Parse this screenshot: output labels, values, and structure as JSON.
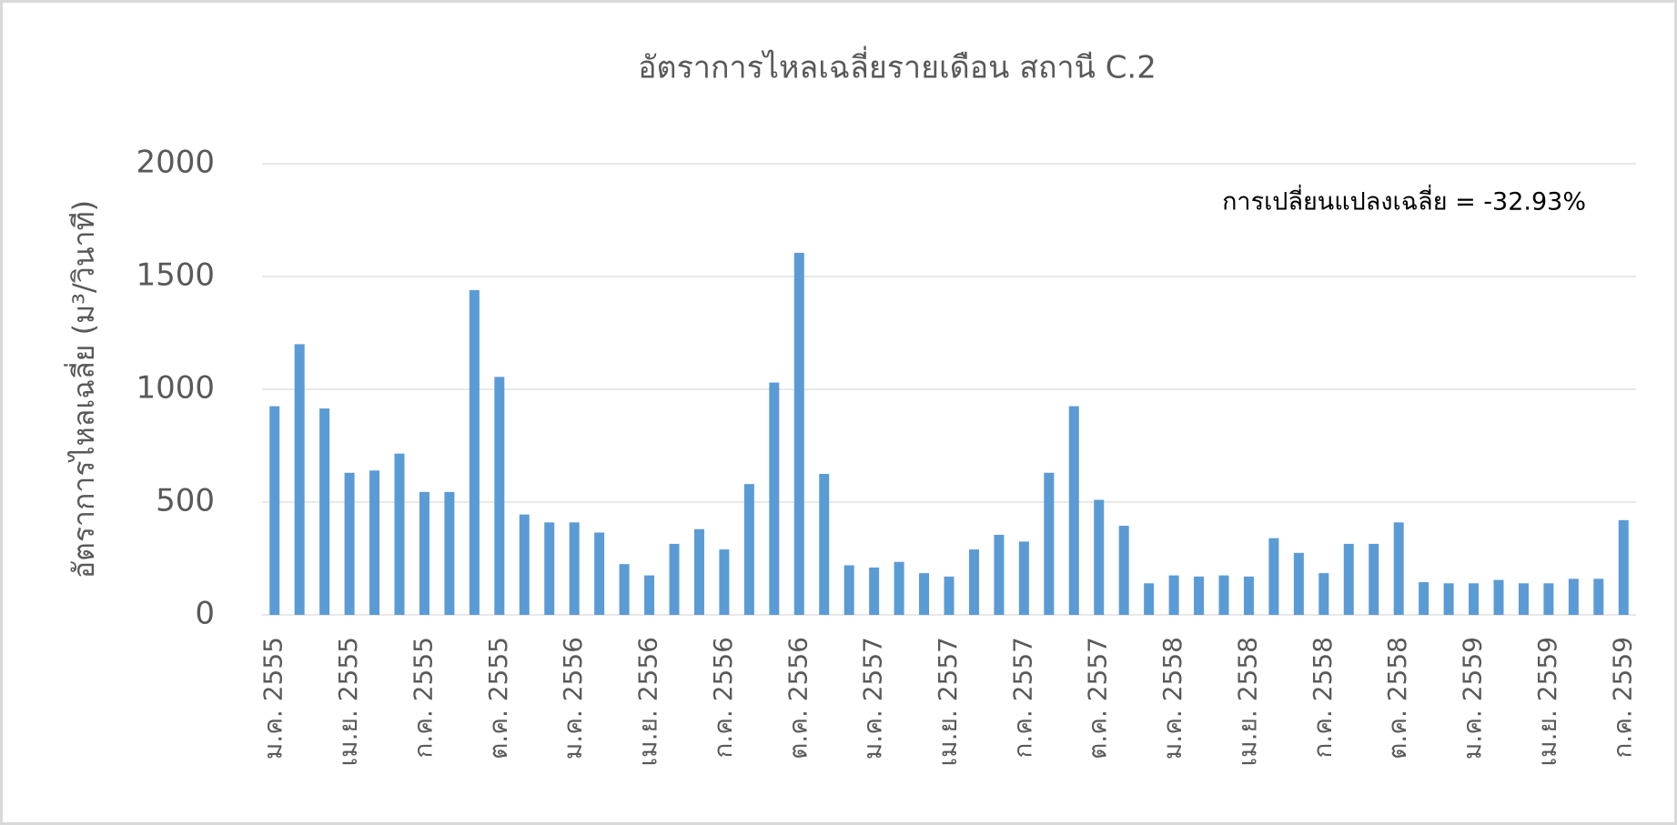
{
  "chart_data": {
    "type": "bar",
    "title": "อัตราการไหลเฉลี่ยรายเดือน  สถานี C.2",
    "y_label": "อัตราการไหลเฉลี่ย (ม³/วินาที)",
    "annotation": "การเปลี่ยนแปลงเฉลี่ย = -32.93%",
    "categories": [
      "ม.ค. 2555",
      null,
      null,
      "เม.ย. 2555",
      null,
      null,
      "ก.ค. 2555",
      null,
      null,
      "ต.ค. 2555",
      null,
      null,
      "ม.ค. 2556",
      null,
      null,
      "เม.ย. 2556",
      null,
      null,
      "ก.ค. 2556",
      null,
      null,
      "ต.ค. 2556",
      null,
      null,
      "ม.ค. 2557",
      null,
      null,
      "เม.ย. 2557",
      null,
      null,
      "ก.ค. 2557",
      null,
      null,
      "ต.ค. 2557",
      null,
      null,
      "ม.ค. 2558",
      null,
      null,
      "เม.ย. 2558",
      null,
      null,
      "ก.ค. 2558",
      null,
      null,
      "ต.ค. 2558",
      null,
      null,
      "ม.ค. 2559",
      null,
      null,
      "เม.ย. 2559",
      null,
      null,
      "ก.ค. 2559"
    ],
    "values": [
      925,
      1200,
      915,
      630,
      640,
      715,
      545,
      545,
      1440,
      1055,
      445,
      410,
      410,
      365,
      225,
      175,
      315,
      380,
      290,
      580,
      1030,
      1605,
      625,
      220,
      210,
      235,
      185,
      170,
      290,
      355,
      325,
      630,
      925,
      510,
      395,
      140,
      175,
      170,
      175,
      170,
      340,
      275,
      185,
      315,
      315,
      410,
      145,
      140,
      140,
      155,
      140,
      140,
      160,
      160,
      420
    ],
    "color": "#5b9bd5",
    "ylim": [
      0,
      2000
    ],
    "yticks": [
      0,
      500,
      1000,
      1500,
      2000
    ],
    "grid": true
  }
}
